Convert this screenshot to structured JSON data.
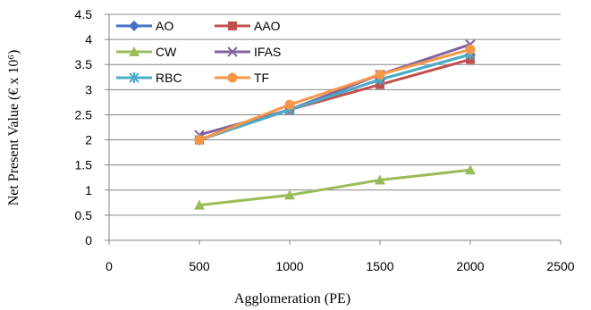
{
  "chart_data": {
    "type": "line",
    "title": "",
    "xlabel": "Agglomeration (PE)",
    "ylabel": "Net Present Value (€ x 10⁶)",
    "xlim": [
      0,
      2500
    ],
    "ylim": [
      0,
      4.5
    ],
    "x_ticks": [
      "0",
      "500",
      "1000",
      "1500",
      "2000",
      "2500"
    ],
    "y_ticks": [
      "0",
      "0.5",
      "1",
      "1.5",
      "2",
      "2.5",
      "3",
      "3.5",
      "4",
      "4.5"
    ],
    "grid": "horizontal",
    "legend_position": "top-left",
    "x": [
      500,
      1000,
      1500,
      2000
    ],
    "series": [
      {
        "name": "AO",
        "values": [
          2.0,
          2.6,
          3.2,
          3.7
        ],
        "color": "#4472C4",
        "marker": "diamond"
      },
      {
        "name": "AAO",
        "values": [
          2.0,
          2.6,
          3.1,
          3.6
        ],
        "color": "#C0504D",
        "marker": "square"
      },
      {
        "name": "CW",
        "values": [
          0.7,
          0.9,
          1.2,
          1.4
        ],
        "color": "#9BBB59",
        "marker": "triangle"
      },
      {
        "name": "IFAS",
        "values": [
          2.1,
          2.6,
          3.3,
          3.9
        ],
        "color": "#8064A2",
        "marker": "x"
      },
      {
        "name": "RBC",
        "values": [
          2.0,
          2.6,
          3.2,
          3.7
        ],
        "color": "#4BACC6",
        "marker": "asterisk"
      },
      {
        "name": "TF",
        "values": [
          2.0,
          2.7,
          3.3,
          3.8
        ],
        "color": "#F79646",
        "marker": "circle"
      }
    ]
  }
}
